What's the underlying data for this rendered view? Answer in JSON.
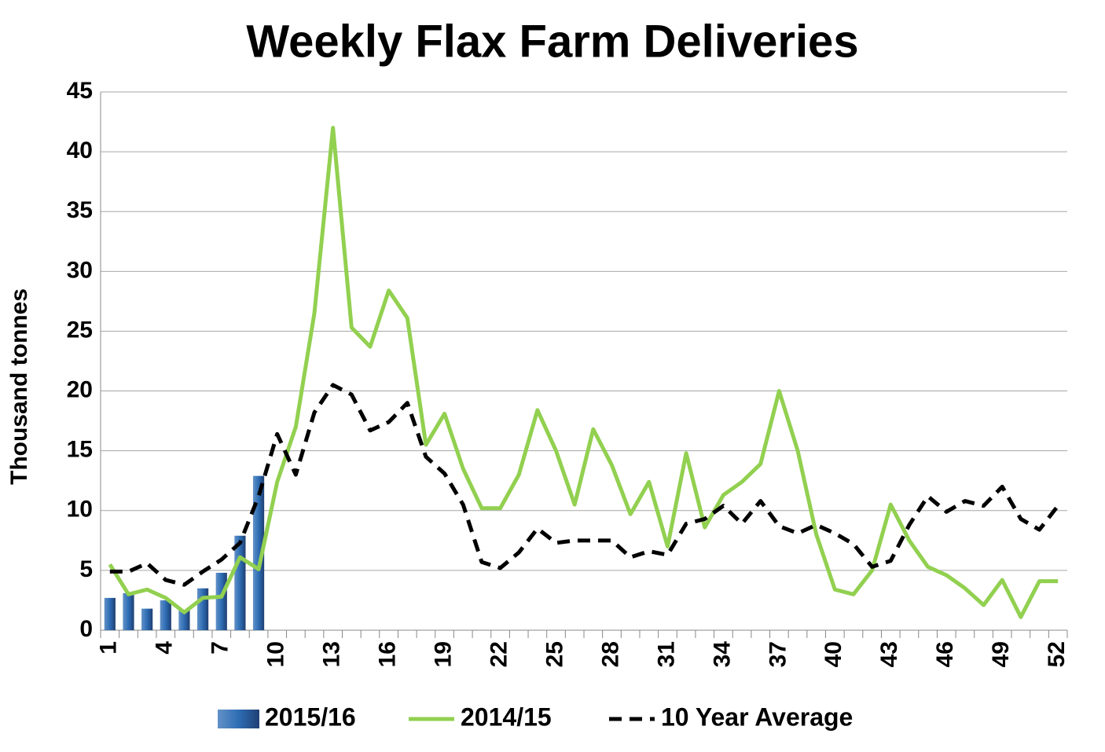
{
  "chart_data": {
    "type": "bar",
    "title": "Weekly Flax Farm Deliveries",
    "ylabel": "Thousand tonnes",
    "categories": [
      1,
      null,
      null,
      4,
      null,
      null,
      7,
      null,
      null,
      10,
      null,
      null,
      13,
      null,
      null,
      16,
      null,
      null,
      19,
      null,
      null,
      22,
      null,
      null,
      25,
      null,
      null,
      28,
      null,
      null,
      31,
      null,
      null,
      34,
      null,
      null,
      37,
      null,
      null,
      40,
      null,
      null,
      43,
      null,
      null,
      46,
      null,
      null,
      49,
      null,
      null,
      52
    ],
    "series": [
      {
        "name": "2015/16",
        "type": "bar",
        "color": "#2e6db4",
        "values": [
          2.7,
          3.1,
          1.8,
          2.5,
          1.7,
          3.5,
          4.8,
          7.9,
          12.9,
          null,
          null,
          null,
          null,
          null,
          null,
          null,
          null,
          null,
          null,
          null,
          null,
          null,
          null,
          null,
          null,
          null,
          null,
          null,
          null,
          null,
          null,
          null,
          null,
          null,
          null,
          null,
          null,
          null,
          null,
          null,
          null,
          null,
          null,
          null,
          null,
          null,
          null,
          null,
          null,
          null,
          null,
          null
        ]
      },
      {
        "name": "2014/15",
        "type": "line",
        "color": "#92d050",
        "dash": false,
        "values": [
          5.5,
          3.0,
          3.4,
          2.7,
          1.5,
          2.7,
          2.8,
          6.1,
          5.1,
          12.4,
          17,
          26.5,
          42,
          25.3,
          23.7,
          28.4,
          26.1,
          15.5,
          18.1,
          13.5,
          10.2,
          10.2,
          13,
          18.4,
          15,
          10.5,
          16.8,
          13.8,
          9.7,
          12.4,
          7.0,
          14.8,
          8.6,
          11.3,
          12.4,
          13.9,
          20,
          15,
          8,
          3.4,
          3.0,
          5,
          10.5,
          7.5,
          5.3,
          4.6,
          3.5,
          2.1,
          4.2,
          1.1,
          4.1,
          4.1
        ]
      },
      {
        "name": "10 Year Average",
        "type": "line",
        "color": "#000000",
        "dash": true,
        "values": [
          4.9,
          4.9,
          5.6,
          4.2,
          3.8,
          4.9,
          5.9,
          7.3,
          11.2,
          16.4,
          13.0,
          18.2,
          20.5,
          19.7,
          16.7,
          17.4,
          19.0,
          14.5,
          13.1,
          10.5,
          5.7,
          5.2,
          6.5,
          8.5,
          7.3,
          7.5,
          7.5,
          7.5,
          6.1,
          6.6,
          6.3,
          8.9,
          9.3,
          10.4,
          8.9,
          10.8,
          8.7,
          8.1,
          8.8,
          8.1,
          7.2,
          5.3,
          5.8,
          8.8,
          11.2,
          9.9,
          10.8,
          10.4,
          12.0,
          9.3,
          8.4,
          10.4
        ]
      }
    ],
    "ylim": [
      0,
      45
    ],
    "yticks": [
      0,
      5,
      10,
      15,
      20,
      25,
      30,
      35,
      40,
      45
    ],
    "grid": true,
    "legend": "bottom"
  }
}
